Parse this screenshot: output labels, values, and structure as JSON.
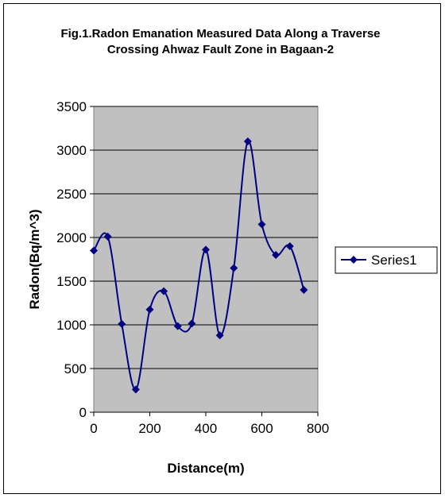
{
  "chart_data": {
    "type": "scatter",
    "title_line1": "Fig.1.Radon Emanation Measured Data Along a Traverse",
    "title_line2": "Crossing Ahwaz Fault Zone in Bagaan-2",
    "xlabel": "Distance(m)",
    "ylabel": "Radon(Bq/m^3)",
    "xlim": [
      0,
      800
    ],
    "ylim": [
      0,
      3500
    ],
    "x_ticks": [
      0,
      200,
      400,
      600,
      800
    ],
    "y_ticks": [
      0,
      500,
      1000,
      1500,
      2000,
      2500,
      3000,
      3500
    ],
    "grid": "horizontal",
    "legend_position": "right",
    "series": [
      {
        "name": "Series1",
        "color": "#000080",
        "marker": "diamond",
        "smooth": true,
        "x": [
          0,
          50,
          100,
          150,
          200,
          250,
          300,
          350,
          400,
          450,
          500,
          550,
          600,
          650,
          700,
          750
        ],
        "y": [
          1850,
          2010,
          1010,
          260,
          1175,
          1385,
          985,
          1015,
          1860,
          880,
          1650,
          3100,
          2150,
          1800,
          1900,
          1400
        ]
      }
    ],
    "plot_background": "#c0c0c0"
  }
}
